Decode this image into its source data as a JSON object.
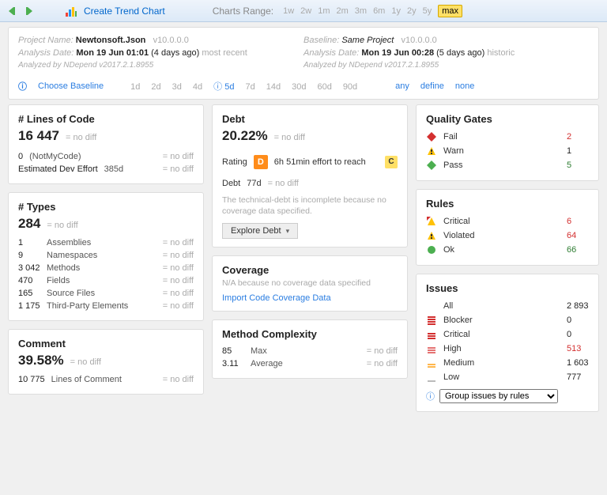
{
  "toolbar": {
    "create_trend": "Create Trend Chart",
    "range_label": "Charts Range:",
    "range_options": [
      "1w",
      "2w",
      "1m",
      "2m",
      "3m",
      "6m",
      "1y",
      "2y",
      "5y",
      "max"
    ],
    "range_selected": "max"
  },
  "header": {
    "left": {
      "project_label": "Project Name:",
      "project": "Newtonsoft.Json",
      "version": "v10.0.0.0",
      "analysis_label": "Analysis Date:",
      "analysis_date": "Mon 19 Jun  01:01",
      "age": "(4 days ago)",
      "tag": "most recent",
      "analyzed_by": "Analyzed by NDepend v2017.2.1.8955"
    },
    "right": {
      "baseline_label": "Baseline:",
      "baseline": "Same Project",
      "version": "v10.0.0.0",
      "analysis_label": "Analysis Date:",
      "analysis_date": "Mon 19 Jun  00:28",
      "age": "(5 days ago)",
      "tag": "historic",
      "analyzed_by": "Analyzed by NDepend v2017.2.1.8955"
    },
    "baseline_row": {
      "choose": "Choose Baseline",
      "opts": [
        "1d",
        "2d",
        "3d",
        "4d",
        "5d",
        "7d",
        "14d",
        "30d",
        "60d",
        "90d"
      ],
      "selected": "5d",
      "extra": [
        "any",
        "define",
        "none"
      ]
    }
  },
  "loc": {
    "title": "# Lines of Code",
    "value": "16 447",
    "items": [
      {
        "k": "0",
        "v": "(NotMyCode)"
      },
      {
        "k": "Estimated Dev Effort",
        "v": "385d"
      }
    ]
  },
  "types": {
    "title": "# Types",
    "value": "284",
    "items": [
      {
        "k": "1",
        "v": "Assemblies"
      },
      {
        "k": "9",
        "v": "Namespaces"
      },
      {
        "k": "3 042",
        "v": "Methods"
      },
      {
        "k": "470",
        "v": "Fields"
      },
      {
        "k": "165",
        "v": "Source Files"
      },
      {
        "k": "1 175",
        "v": "Third-Party Elements"
      }
    ]
  },
  "comment": {
    "title": "Comment",
    "value": "39.58%",
    "items": [
      {
        "k": "10 775",
        "v": "Lines of Comment"
      }
    ]
  },
  "debt": {
    "title": "Debt",
    "value": "20.22%",
    "rating_label": "Rating",
    "rating": "D",
    "effort": "6h  51min effort to reach",
    "reach": "C",
    "debt_label": "Debt",
    "debt_val": "77d",
    "note": "The technical-debt is incomplete because no coverage data specified.",
    "explore": "Explore Debt"
  },
  "coverage": {
    "title": "Coverage",
    "note": "N/A because no coverage data specified",
    "link": "Import Code Coverage Data"
  },
  "complexity": {
    "title": "Method Complexity",
    "items": [
      {
        "k": "85",
        "v": "Max"
      },
      {
        "k": "3.11",
        "v": "Average"
      }
    ]
  },
  "quality": {
    "title": "Quality Gates",
    "items": [
      {
        "icon": "fail",
        "label": "Fail",
        "num": "2",
        "cls": "red"
      },
      {
        "icon": "warn",
        "label": "Warn",
        "num": "1",
        "cls": "black"
      },
      {
        "icon": "pass",
        "label": "Pass",
        "num": "5",
        "cls": "green"
      }
    ]
  },
  "rules": {
    "title": "Rules",
    "items": [
      {
        "icon": "crit",
        "label": "Critical",
        "num": "6",
        "cls": "red"
      },
      {
        "icon": "viol",
        "label": "Violated",
        "num": "64",
        "cls": "red"
      },
      {
        "icon": "ok",
        "label": "Ok",
        "num": "66",
        "cls": "green"
      }
    ]
  },
  "issues": {
    "title": "Issues",
    "items": [
      {
        "icon": "all",
        "label": "All",
        "num": "2 893",
        "cls": "black"
      },
      {
        "icon": "blocker",
        "label": "Blocker",
        "num": "0",
        "cls": "black"
      },
      {
        "icon": "critical",
        "label": "Critical",
        "num": "0",
        "cls": "black"
      },
      {
        "icon": "high",
        "label": "High",
        "num": "513",
        "cls": "red"
      },
      {
        "icon": "medium",
        "label": "Medium",
        "num": "1 603",
        "cls": "black"
      },
      {
        "icon": "low",
        "label": "Low",
        "num": "777",
        "cls": "black"
      }
    ],
    "group_label": "Group issues by rules"
  },
  "nodiff": "no diff"
}
